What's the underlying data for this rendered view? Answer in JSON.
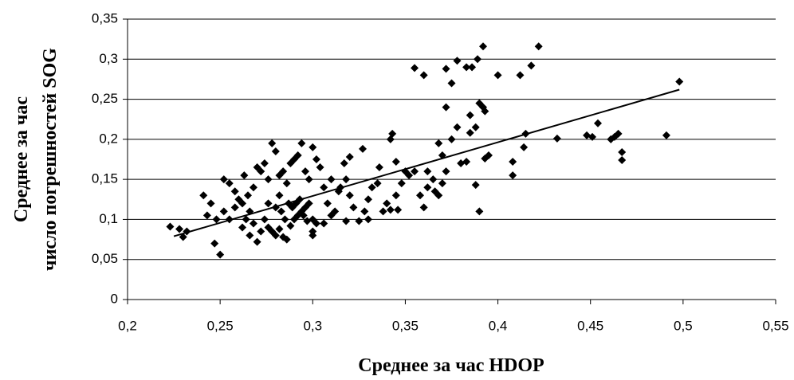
{
  "chart_data": {
    "type": "scatter",
    "x_label": "Среднее за час HDOP",
    "y_label": [
      "Среднее за час",
      "число погрешностей SOG"
    ],
    "color": "#000000",
    "grid": true,
    "xlim": [
      0.2,
      0.55
    ],
    "ylim": [
      0,
      0.35
    ],
    "xticks": [
      {
        "value": 0.2,
        "label": "0,2"
      },
      {
        "value": 0.25,
        "label": "0,25"
      },
      {
        "value": 0.3,
        "label": "0,3"
      },
      {
        "value": 0.35,
        "label": "0,35"
      },
      {
        "value": 0.4,
        "label": "0,4"
      },
      {
        "value": 0.45,
        "label": "0,45"
      },
      {
        "value": 0.5,
        "label": "0,5"
      },
      {
        "value": 0.55,
        "label": "0,55"
      }
    ],
    "yticks": [
      0,
      {
        "value": 0.05,
        "label": "0,05"
      },
      {
        "value": 0.1,
        "label": "0,1"
      },
      {
        "value": 0.15,
        "label": "0,15"
      },
      {
        "value": 0.2,
        "label": "0,2"
      },
      {
        "value": 0.25,
        "label": "0,25"
      },
      {
        "value": 0.3,
        "label": "0,3"
      },
      {
        "value": 0.35,
        "label": "0,35"
      }
    ],
    "x": [
      0.355,
      0.36,
      0.372,
      0.378,
      0.383,
      0.386,
      0.389,
      0.392,
      0.375,
      0.372,
      0.385,
      0.388,
      0.39,
      0.392,
      0.393,
      0.4,
      0.412,
      0.418,
      0.422,
      0.415,
      0.414,
      0.408,
      0.408,
      0.432,
      0.448,
      0.451,
      0.454,
      0.461,
      0.463,
      0.465,
      0.467,
      0.467,
      0.491,
      0.498,
      0.39,
      0.388,
      0.395,
      0.393,
      0.38,
      0.383,
      0.375,
      0.37,
      0.368,
      0.378,
      0.385,
      0.343,
      0.342,
      0.345,
      0.35,
      0.352,
      0.355,
      0.358,
      0.36,
      0.362,
      0.365,
      0.366,
      0.368,
      0.37,
      0.372,
      0.362,
      0.348,
      0.345,
      0.34,
      0.338,
      0.342,
      0.346,
      0.335,
      0.332,
      0.33,
      0.328,
      0.325,
      0.322,
      0.32,
      0.318,
      0.315,
      0.317,
      0.32,
      0.327,
      0.336,
      0.33,
      0.318,
      0.252,
      0.255,
      0.258,
      0.26,
      0.262,
      0.263,
      0.265,
      0.266,
      0.268,
      0.27,
      0.272,
      0.274,
      0.276,
      0.278,
      0.28,
      0.282,
      0.284,
      0.286,
      0.288,
      0.29,
      0.292,
      0.294,
      0.296,
      0.298,
      0.3,
      0.302,
      0.304,
      0.306,
      0.308,
      0.31,
      0.312,
      0.276,
      0.278,
      0.28,
      0.282,
      0.284,
      0.286,
      0.288,
      0.29,
      0.292,
      0.294,
      0.296,
      0.298,
      0.3,
      0.302,
      0.3,
      0.3,
      0.285,
      0.283,
      0.287,
      0.289,
      0.291,
      0.293,
      0.295,
      0.297,
      0.272,
      0.27,
      0.266,
      0.262,
      0.264,
      0.268,
      0.274,
      0.28,
      0.282,
      0.276,
      0.306,
      0.31,
      0.314,
      0.223,
      0.228,
      0.23,
      0.232,
      0.241,
      0.243,
      0.245,
      0.247,
      0.25,
      0.248,
      0.252,
      0.255,
      0.258
    ],
    "values": [
      0.289,
      0.28,
      0.288,
      0.298,
      0.29,
      0.29,
      0.3,
      0.316,
      0.27,
      0.24,
      0.23,
      0.215,
      0.245,
      0.24,
      0.235,
      0.28,
      0.28,
      0.292,
      0.316,
      0.207,
      0.19,
      0.172,
      0.155,
      0.201,
      0.205,
      0.203,
      0.22,
      0.2,
      0.203,
      0.207,
      0.184,
      0.174,
      0.205,
      0.272,
      0.11,
      0.143,
      0.18,
      0.176,
      0.17,
      0.172,
      0.2,
      0.18,
      0.195,
      0.215,
      0.208,
      0.207,
      0.2,
      0.172,
      0.16,
      0.155,
      0.16,
      0.13,
      0.115,
      0.14,
      0.15,
      0.135,
      0.13,
      0.145,
      0.16,
      0.16,
      0.145,
      0.13,
      0.12,
      0.11,
      0.112,
      0.112,
      0.145,
      0.14,
      0.125,
      0.11,
      0.098,
      0.115,
      0.13,
      0.15,
      0.14,
      0.17,
      0.178,
      0.188,
      0.165,
      0.1,
      0.098,
      0.15,
      0.145,
      0.135,
      0.125,
      0.12,
      0.155,
      0.13,
      0.11,
      0.14,
      0.165,
      0.16,
      0.17,
      0.15,
      0.195,
      0.185,
      0.155,
      0.16,
      0.145,
      0.17,
      0.175,
      0.18,
      0.195,
      0.16,
      0.15,
      0.19,
      0.175,
      0.165,
      0.14,
      0.12,
      0.105,
      0.11,
      0.09,
      0.085,
      0.08,
      0.088,
      0.078,
      0.075,
      0.092,
      0.1,
      0.105,
      0.11,
      0.115,
      0.12,
      0.1,
      0.095,
      0.08,
      0.085,
      0.1,
      0.11,
      0.12,
      0.115,
      0.12,
      0.125,
      0.105,
      0.098,
      0.085,
      0.072,
      0.08,
      0.09,
      0.1,
      0.095,
      0.1,
      0.115,
      0.13,
      0.12,
      0.095,
      0.15,
      0.135,
      0.091,
      0.088,
      0.078,
      0.085,
      0.13,
      0.105,
      0.12,
      0.07,
      0.056,
      0.1,
      0.11,
      0.1,
      0.115
    ],
    "trendline": {
      "x": [
        0.225,
        0.498
      ],
      "values": [
        0.079,
        0.262
      ]
    }
  }
}
